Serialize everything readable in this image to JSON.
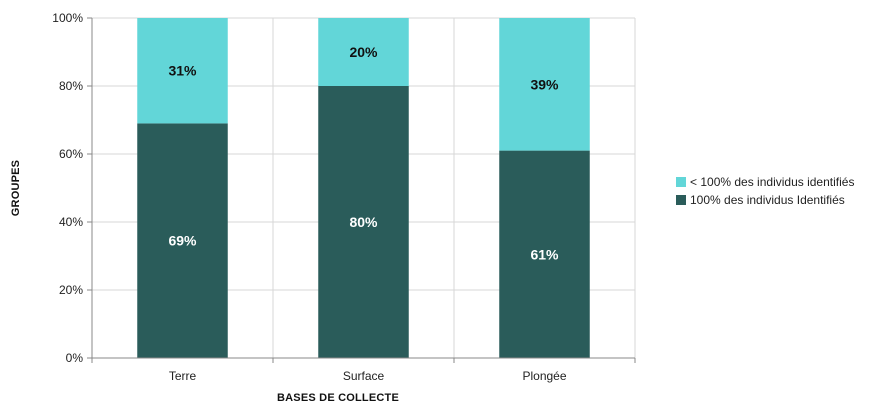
{
  "chart_data": {
    "type": "bar",
    "stacked": true,
    "categories": [
      "Terre",
      "Surface",
      "Plongée"
    ],
    "series": [
      {
        "name": "100% des individus Identifiés",
        "values": [
          69,
          80,
          61
        ],
        "labels": [
          "69%",
          "80%",
          "61%"
        ],
        "color": "#2a5c5a",
        "label_color": "#ffffff"
      },
      {
        "name": "< 100% des individus identifiés",
        "values": [
          31,
          20,
          39
        ],
        "labels": [
          "31%",
          "20%",
          "39%"
        ],
        "color": "#62d6d8",
        "label_color": "#111111"
      }
    ],
    "xlabel": "BASES DE COLLECTE",
    "ylabel": "GROUPES",
    "ylim": [
      0,
      100
    ],
    "yticks": [
      "0%",
      "20%",
      "40%",
      "60%",
      "80%",
      "100%"
    ],
    "ytick_values": [
      0,
      20,
      40,
      60,
      80,
      100
    ],
    "grid": true,
    "legend_placement": "right",
    "legend_order": [
      "< 100% des individus identifiés",
      "100% des individus Identifiés"
    ]
  }
}
